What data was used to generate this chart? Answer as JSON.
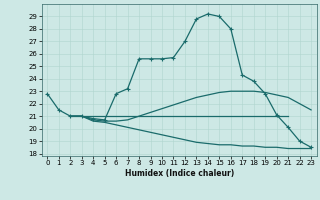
{
  "xlabel": "Humidex (Indice chaleur)",
  "xlim": [
    -0.5,
    23.5
  ],
  "ylim": [
    17.8,
    30.0
  ],
  "yticks": [
    18,
    19,
    20,
    21,
    22,
    23,
    24,
    25,
    26,
    27,
    28,
    29
  ],
  "xticks": [
    0,
    1,
    2,
    3,
    4,
    5,
    6,
    7,
    8,
    9,
    10,
    11,
    12,
    13,
    14,
    15,
    16,
    17,
    18,
    19,
    20,
    21,
    22,
    23
  ],
  "background_color": "#cde8e5",
  "line_color": "#1a6b6b",
  "grid_color": "#b0d5cf",
  "line1_x": [
    0,
    1,
    2,
    3,
    4,
    5,
    6,
    7,
    8,
    9,
    10,
    11,
    12,
    13,
    14,
    15,
    16,
    17,
    18,
    19,
    20,
    21,
    22,
    23
  ],
  "line1_y": [
    22.8,
    21.5,
    21.0,
    21.0,
    20.8,
    20.7,
    22.8,
    23.2,
    25.6,
    25.6,
    25.6,
    25.7,
    27.0,
    28.8,
    29.2,
    29.0,
    28.0,
    24.3,
    23.8,
    22.8,
    21.1,
    20.1,
    19.0,
    18.5
  ],
  "line2_x": [
    2,
    3,
    4,
    5,
    6,
    7,
    8,
    9,
    10,
    11,
    12,
    13,
    14,
    15,
    16,
    17,
    18,
    19,
    20,
    21
  ],
  "line2_y": [
    21.0,
    21.0,
    21.0,
    21.0,
    21.0,
    21.0,
    21.0,
    21.0,
    21.0,
    21.0,
    21.0,
    21.0,
    21.0,
    21.0,
    21.0,
    21.0,
    21.0,
    21.0,
    21.0,
    21.0
  ],
  "line3_x": [
    2,
    3,
    4,
    5,
    6,
    7,
    8,
    9,
    10,
    11,
    12,
    13,
    14,
    15,
    16,
    17,
    18,
    19,
    20,
    21,
    22,
    23
  ],
  "line3_y": [
    21.0,
    21.0,
    20.7,
    20.6,
    20.6,
    20.7,
    21.0,
    21.3,
    21.6,
    21.9,
    22.2,
    22.5,
    22.7,
    22.9,
    23.0,
    23.0,
    23.0,
    22.9,
    22.7,
    22.5,
    22.0,
    21.5
  ],
  "line4_x": [
    2,
    3,
    4,
    5,
    6,
    7,
    8,
    9,
    10,
    11,
    12,
    13,
    14,
    15,
    16,
    17,
    18,
    19,
    20,
    21,
    22,
    23
  ],
  "line4_y": [
    21.0,
    21.0,
    20.6,
    20.5,
    20.3,
    20.1,
    19.9,
    19.7,
    19.5,
    19.3,
    19.1,
    18.9,
    18.8,
    18.7,
    18.7,
    18.6,
    18.6,
    18.5,
    18.5,
    18.4,
    18.4,
    18.4
  ]
}
